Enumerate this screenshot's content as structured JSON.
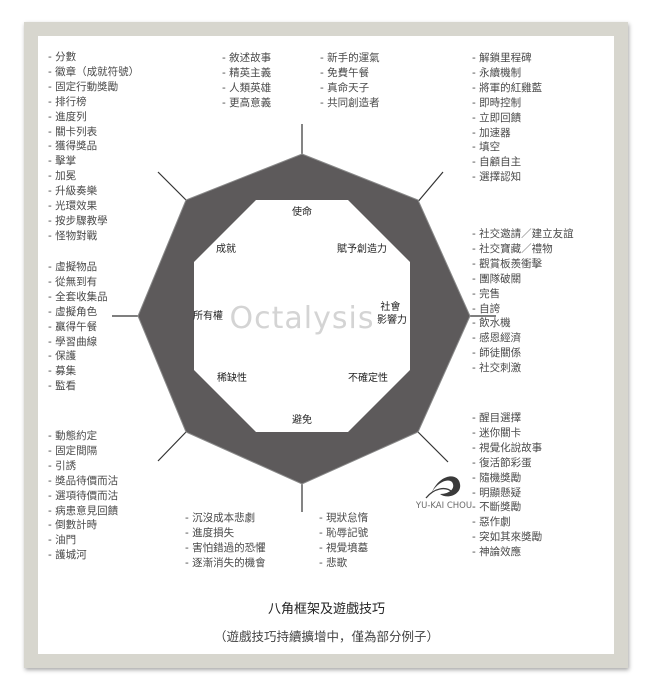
{
  "lists": {
    "top_left": [
      "- 分數",
      "- 徽章（成就符號）",
      "- 固定行動獎勵",
      "- 排行榜",
      "- 進度列",
      "- 關卡列表",
      "- 獲得獎品",
      "- 擊掌",
      "- 加冕",
      "- 升級奏樂",
      "- 光環效果",
      "- 按步驟教學",
      "- 怪物對戰"
    ],
    "mid_left": [
      "- 虛擬物品",
      "- 從無到有",
      "- 全套收集品",
      "- 虛擬角色",
      "- 贏得午餐",
      "- 學習曲線",
      "- 保護",
      "- 募集",
      "- 監看"
    ],
    "bottom_left": [
      "- 動態約定",
      "- 固定間隔",
      "- 引誘",
      "- 獎品待價而沽",
      "- 選項待價而沽",
      "- 病患意見回饋",
      "- 倒數計時",
      "- 油門",
      "- 護城河"
    ],
    "top_center_left": [
      "- 敘述故事",
      "- 精英主義",
      "- 人類英雄",
      "- 更高意義"
    ],
    "top_center_right": [
      "- 新手的運氣",
      "- 免費午餐",
      "- 真命天子",
      "- 共同創造者"
    ],
    "top_right": [
      "- 解鎖里程碑",
      "- 永續機制",
      "- 將軍的紅雞藍",
      "- 即時控制",
      "- 立即回饋",
      "- 加速器",
      "- 填空",
      "- 自顧自主",
      "- 選擇認知"
    ],
    "mid_right": [
      "- 社交邀請／建立友誼",
      "- 社交寶藏／禮物",
      "- 觀賞板羨衝擊",
      "- 團隊破關",
      "- 完售",
      "- 自誇",
      "- 飲水機",
      "- 感恩經濟",
      "- 師徒關係",
      "- 社交刺激"
    ],
    "bottom_right": [
      "- 醒目選擇",
      "- 迷你關卡",
      "- 視覺化說故事",
      "- 復活節彩蛋",
      "- 隨機獎勵",
      "- 明顯懸疑",
      "- 不斷獎勵",
      "- 惡作劇",
      "- 突如其來獎勵",
      "- 神論效應"
    ],
    "bottom_center_left": [
      "- 沉沒成本悲劇",
      "- 進度損失",
      "- 害怕錯過的恐懼",
      "- 逐漸消失的機會"
    ],
    "bottom_center_right": [
      "- 現狀怠惰",
      "- 恥辱記號",
      "- 視覺墳墓",
      "- 悲歌"
    ]
  },
  "octagon": {
    "labels": {
      "top": "使命",
      "top_right": "賦予創造力",
      "right": "社會\n影響力",
      "bottom_right": "不確定性",
      "bottom": "避免",
      "bottom_left": "稀缺性",
      "left": "所有權",
      "top_left": "成就"
    },
    "watermark": "Octalysis",
    "colors": {
      "ring": "#5d5a5b",
      "ring_edge": "#888888",
      "inner": "#ffffff",
      "spoke": "#333333"
    }
  },
  "logo": {
    "text": "YU-KAI CHOU"
  },
  "footer": {
    "title": "八角框架及遊戲技巧",
    "subtitle": "（遊戲技巧持續擴增中，僅為部分例子）"
  }
}
